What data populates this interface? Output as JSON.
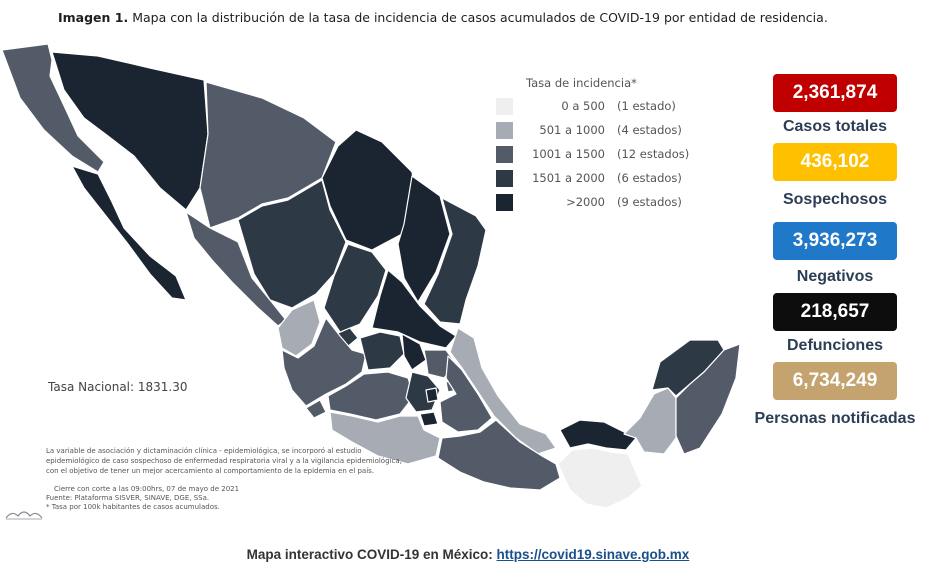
{
  "title": {
    "prefix": "Imagen 1.",
    "text": "Mapa con la distribución de la tasa de incidencia de casos acumulados de COVID-19 por entidad de residencia."
  },
  "legend": {
    "title": "Tasa de incidencia*",
    "items": [
      {
        "range": "0 a   500",
        "count": "(1 estado)",
        "color": "#efefef"
      },
      {
        "range": "501 a  1000",
        "count": "(4 estados)",
        "color": "#a7abb3"
      },
      {
        "range": "1001 a  1500",
        "count": "(12 estados)",
        "color": "#525b67"
      },
      {
        "range": "1501 a  2000",
        "count": "(6 estados)",
        "color": "#2e3946"
      },
      {
        "range": ">2000",
        "count": "(9 estados)",
        "color": "#1b2431"
      }
    ]
  },
  "stats": [
    {
      "value": "2,361,874",
      "label": "Casos totales",
      "color": "#c00000"
    },
    {
      "value": "436,102",
      "label": "Sospechosos",
      "color": "#ffc000"
    },
    {
      "value": "3,936,273",
      "label": "Negativos",
      "color": "#1f78c8"
    },
    {
      "value": "218,657",
      "label": "Defunciones",
      "color": "#0d0d0d"
    },
    {
      "value": "6,734,249",
      "label": "Personas notificadas",
      "color": "#c4a36f"
    }
  ],
  "national_rate": "Tasa Nacional: 1831.30",
  "notes": [
    "La variable de asociación y dictaminación clínica - epidemiológica, se incorporó al estudio",
    "epidemiológico de caso sospechoso de enfermedad respiratoria viral y a la vigilancia epidemiológica,",
    "con el objetivo de tener un mejor acercamiento al comportamiento de la epidemia en el país."
  ],
  "closing": [
    "Cierre con corte a las 09:00hrs, 07 de mayo de 2021",
    "Fuente: Plataforma SISVER, SINAVE, DGE, SSa.",
    "* Tasa por 100k habitantes de casos acumulados."
  ],
  "footer": {
    "label": "Mapa interactivo COVID-19 en México:",
    "link": "https://covid19.sinave.gob.mx"
  }
}
